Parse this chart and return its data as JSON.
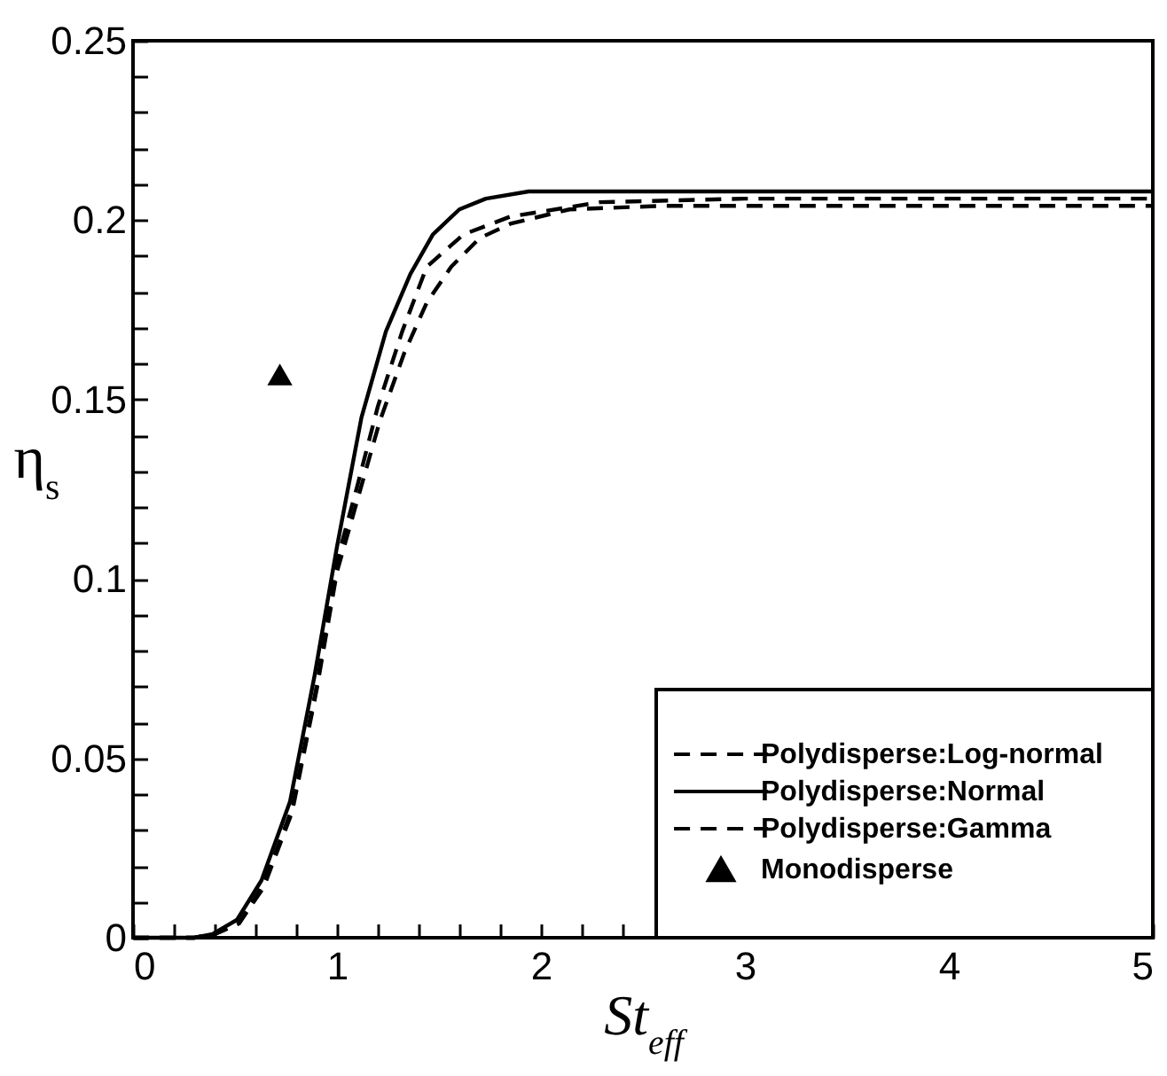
{
  "chart_data": {
    "type": "line",
    "xlabel": "St$_{eff}$",
    "ylabel": "η$_{s}$",
    "series": [
      {
        "name": "Polydisperse:Log-normal",
        "color": "#000000",
        "line_style": "dashed",
        "x": [
          0,
          0.3,
          0.4,
          0.52,
          0.64,
          0.78,
          0.9,
          1.0,
          1.09,
          1.21,
          1.33,
          1.44,
          1.56,
          1.7,
          1.85,
          2.14,
          2.6,
          3,
          4,
          5
        ],
        "values": [
          0,
          0,
          0.001,
          0.004,
          0.014,
          0.035,
          0.069,
          0.102,
          0.12,
          0.144,
          0.163,
          0.177,
          0.187,
          0.195,
          0.199,
          0.203,
          0.204,
          0.204,
          0.204,
          0.204
        ]
      },
      {
        "name": "Polydisperse:Normal",
        "color": "#000000",
        "line_style": "solid",
        "x": [
          0,
          0.3,
          0.39,
          0.51,
          0.63,
          0.77,
          0.89,
          1.0,
          1.12,
          1.24,
          1.36,
          1.47,
          1.6,
          1.73,
          1.94,
          2.3,
          3,
          4,
          5
        ],
        "values": [
          0,
          0,
          0.001,
          0.005,
          0.016,
          0.038,
          0.073,
          0.109,
          0.145,
          0.169,
          0.185,
          0.196,
          0.203,
          0.206,
          0.208,
          0.208,
          0.208,
          0.208,
          0.208
        ]
      },
      {
        "name": "Polydisperse:Gamma",
        "color": "#000000",
        "line_style": "dashed",
        "x": [
          0,
          0.3,
          0.4,
          0.52,
          0.64,
          0.78,
          0.9,
          1.0,
          1.1,
          1.2,
          1.32,
          1.44,
          1.62,
          1.85,
          2.29,
          3,
          4,
          5
        ],
        "values": [
          0,
          0,
          0.001,
          0.004,
          0.015,
          0.036,
          0.07,
          0.105,
          0.126,
          0.148,
          0.169,
          0.187,
          0.196,
          0.201,
          0.205,
          0.206,
          0.206,
          0.206
        ]
      },
      {
        "name": "Monodisperse",
        "color": "#000000",
        "type": "scatter",
        "marker": "triangle",
        "x": [
          0.72
        ],
        "values": [
          0.157
        ]
      }
    ],
    "xlim": [
      0,
      5
    ],
    "ylim": [
      0,
      0.25
    ],
    "xticks": [
      0,
      {
        "value": 0.2,
        "label": null
      },
      {
        "value": 0.4,
        "label": null
      },
      {
        "value": 0.6,
        "label": null
      },
      {
        "value": 0.8,
        "label": null
      },
      1,
      {
        "value": 1.2,
        "label": null
      },
      {
        "value": 1.4,
        "label": null
      },
      {
        "value": 1.6,
        "label": null
      },
      {
        "value": 1.8,
        "label": null
      },
      2,
      {
        "value": 2.2,
        "label": null
      },
      {
        "value": 2.4,
        "label": null
      },
      {
        "value": 2.6,
        "label": null
      },
      {
        "value": 2.8,
        "label": null
      },
      3,
      {
        "value": 3.2,
        "label": null
      },
      {
        "value": 3.4,
        "label": null
      },
      {
        "value": 3.6,
        "label": null
      },
      {
        "value": 3.8,
        "label": null
      },
      4,
      {
        "value": 4.2,
        "label": null
      },
      {
        "value": 4.4,
        "label": null
      },
      {
        "value": 4.6,
        "label": null
      },
      {
        "value": 4.8,
        "label": null
      },
      5
    ],
    "yticks": [
      0,
      {
        "value": 0.01,
        "label": null
      },
      {
        "value": 0.02,
        "label": null
      },
      {
        "value": 0.03,
        "label": null
      },
      {
        "value": 0.04,
        "label": null
      },
      0.05,
      {
        "value": 0.06,
        "label": null
      },
      {
        "value": 0.07,
        "label": null
      },
      {
        "value": 0.08,
        "label": null
      },
      {
        "value": 0.09,
        "label": null
      },
      0.1,
      {
        "value": 0.11,
        "label": null
      },
      {
        "value": 0.12,
        "label": null
      },
      {
        "value": 0.13,
        "label": null
      },
      {
        "value": 0.14,
        "label": null
      },
      0.15,
      {
        "value": 0.16,
        "label": null
      },
      {
        "value": 0.17,
        "label": null
      },
      {
        "value": 0.18,
        "label": null
      },
      {
        "value": 0.19,
        "label": null
      },
      0.2,
      {
        "value": 0.21,
        "label": null
      },
      {
        "value": 0.22,
        "label": null
      },
      {
        "value": 0.23,
        "label": null
      },
      {
        "value": 0.24,
        "label": null
      },
      0.25
    ],
    "grid": false,
    "legend": "bottom right"
  }
}
